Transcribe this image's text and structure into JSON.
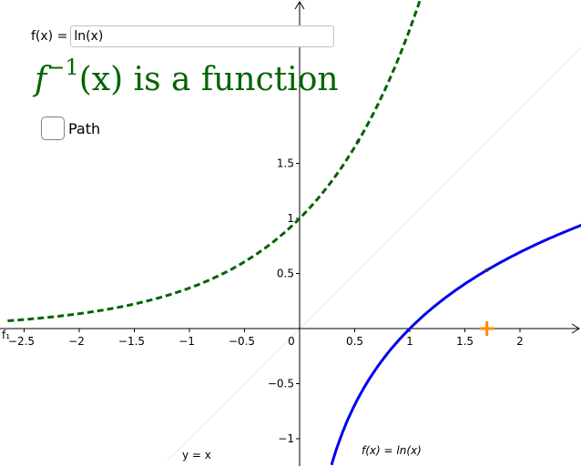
{
  "function_input": {
    "label": "f(x) =",
    "value": "ln(x)"
  },
  "headline": {
    "function": "f",
    "exponent": "−1",
    "argument": "(x)",
    "suffix": " is a function",
    "color": "#006400"
  },
  "path_toggle": {
    "label": "Path",
    "checked": false
  },
  "graph": {
    "x_tick_labels": [
      "−2.5",
      "−2",
      "−1.5",
      "−1",
      "−0.5",
      "0",
      "0.5",
      "1",
      "1.5",
      "2"
    ],
    "y_tick_labels": [
      "−1",
      "−0.5",
      "0.5",
      "1",
      "1.5"
    ],
    "x_range": [
      -2.65,
      2.55
    ],
    "y_range": [
      -1.25,
      2.95
    ],
    "curve_label": "f(x)  =  ln(x)",
    "identity_label": "y = x",
    "inverse_label": "f₁",
    "colors": {
      "function_curve": "#0000ee",
      "inverse_curve": "#006400",
      "identity_line": "#e6e6e6",
      "marker": "#ff8c00"
    },
    "marker_x": 1.7,
    "point_on_curve_x": 1.7,
    "point_on_inverse_x": 0.53
  }
}
